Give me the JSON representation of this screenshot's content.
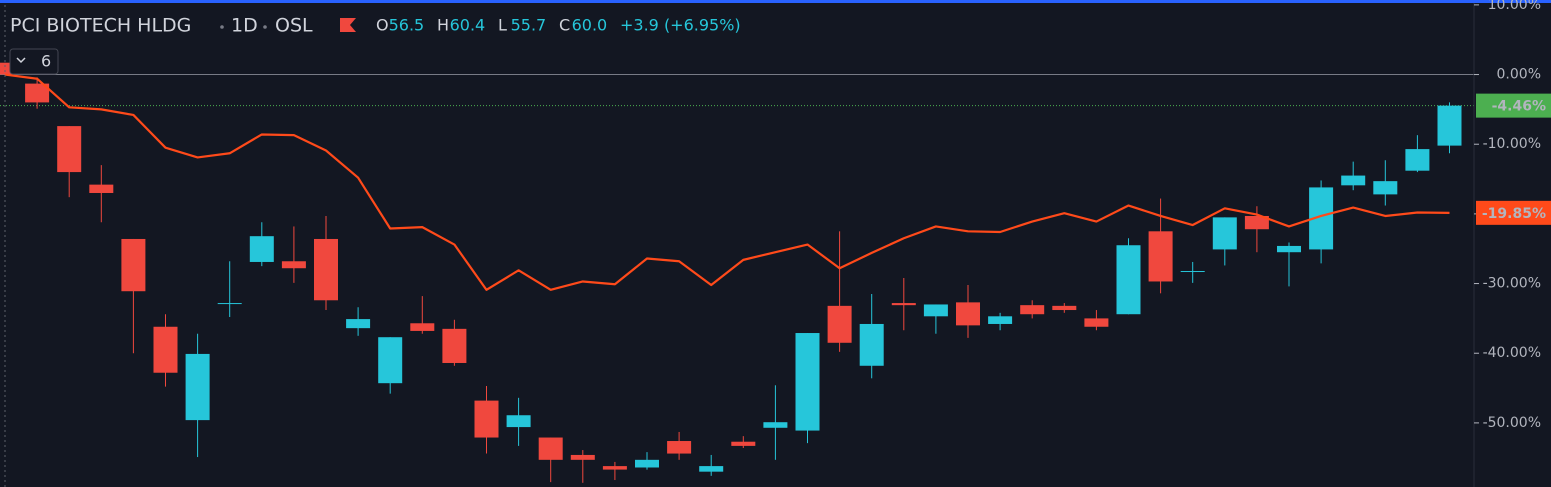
{
  "chart_data": {
    "type": "candlestick",
    "title": "PCI BIOTECH HLDG",
    "interval": "1D",
    "exchange": "OSL",
    "legend": [
      {
        "key": "O",
        "value": "56.5"
      },
      {
        "key": "H",
        "value": "60.4"
      },
      {
        "key": "L",
        "value": "55.7"
      },
      {
        "key": "C",
        "value": "60.0"
      }
    ],
    "change": "+3.9 (+6.95%)",
    "indicator_count": "6",
    "up_color": "#26c6da",
    "down_color": "#f0483e",
    "candles": {
      "open": [
        1.7,
        -1.3,
        -7.4,
        -15.8,
        -23.6,
        -36.2,
        -49.6,
        -32.8,
        -26.9,
        -26.8,
        -23.6,
        -36.4,
        -44.3,
        -35.7,
        -36.5,
        -46.8,
        -50.6,
        -52.1,
        -54.6,
        -56.2,
        -56.4,
        -52.6,
        -57.0,
        -52.7,
        -50.7,
        -51.1,
        -33.2,
        -41.8,
        -32.8,
        -34.7,
        -32.7,
        -35.8,
        -33.1,
        -33.2,
        -35.0,
        -34.4,
        -22.5,
        -28.2,
        -25.1,
        -20.3,
        -25.5,
        -25.1,
        -15.9,
        -17.2,
        -13.8,
        -10.2
      ],
      "high": [
        1.7,
        -0.4,
        -7.4,
        -13.0,
        -23.6,
        -34.4,
        -37.2,
        -26.8,
        -21.2,
        -21.8,
        -20.3,
        -33.4,
        -37.7,
        -31.8,
        -35.2,
        -44.7,
        -46.4,
        -52.1,
        -53.9,
        -55.6,
        -54.2,
        -51.3,
        -54.6,
        -51.9,
        -44.6,
        -37.1,
        -22.5,
        -31.5,
        -29.2,
        -33.0,
        -30.2,
        -34.2,
        -32.4,
        -32.8,
        -33.8,
        -23.5,
        -17.8,
        -26.9,
        -20.5,
        -18.9,
        -24.1,
        -15.2,
        -12.5,
        -12.3,
        -8.7,
        -4.0
      ],
      "low": [
        0,
        -4.9,
        -17.6,
        -21.2,
        -40.0,
        -44.8,
        -54.9,
        -34.8,
        -27.5,
        -29.9,
        -33.8,
        -37.5,
        -45.8,
        -37.2,
        -41.8,
        -54.4,
        -53.3,
        -58.5,
        -58.6,
        -58.2,
        -56.7,
        -55.3,
        -57.6,
        -53.6,
        -55.3,
        -52.9,
        -39.8,
        -43.6,
        -36.7,
        -37.2,
        -37.8,
        -36.7,
        -35.0,
        -34.2,
        -36.7,
        -34.4,
        -31.4,
        -29.9,
        -27.4,
        -25.5,
        -30.4,
        -27.1,
        -16.6,
        -18.8,
        -14.0,
        -11.3
      ],
      "close": [
        0,
        -4.0,
        -14.0,
        -17.0,
        -31.1,
        -42.8,
        -40.1,
        -32.8,
        -23.2,
        -27.8,
        -32.4,
        -35.1,
        -37.7,
        -36.8,
        -41.4,
        -52.1,
        -48.9,
        -55.3,
        -55.3,
        -56.7,
        -55.3,
        -54.4,
        -56.2,
        -53.3,
        -49.9,
        -37.1,
        -38.5,
        -35.8,
        -33.1,
        -33.0,
        -36.0,
        -34.7,
        -34.4,
        -33.8,
        -36.2,
        -24.5,
        -29.7,
        -28.2,
        -20.5,
        -22.2,
        -24.6,
        -16.2,
        -14.5,
        -15.3,
        -10.7,
        -4.46
      ]
    },
    "price_badge": {
      "value": -4.46,
      "label": "-4.46%",
      "color": "#4caf50"
    },
    "compare": {
      "color": "#ff4a1a",
      "values": [
        0,
        -0.6,
        -4.7,
        -5.0,
        -5.8,
        -10.5,
        -11.9,
        -11.3,
        -8.6,
        -8.7,
        -10.9,
        -14.8,
        -22.1,
        -21.9,
        -24.4,
        -30.9,
        -28.1,
        -30.9,
        -29.7,
        -30.1,
        -26.4,
        -26.8,
        -30.2,
        -26.6,
        -25.5,
        -24.4,
        -27.8,
        -25.6,
        -23.5,
        -21.8,
        -22.5,
        -22.6,
        -21.1,
        -19.9,
        -21.1,
        -18.8,
        -20.3,
        -21.6,
        -19.2,
        -20.1,
        -21.8,
        -20.3,
        -19.1,
        -20.3,
        -19.8,
        -19.85
      ],
      "badge": {
        "value": -19.85,
        "label": "-19.85%"
      }
    },
    "ylim": [
      -59.2,
      10.7
    ],
    "yticks": [
      {
        "value": 10,
        "label": "10.00%"
      },
      {
        "value": 0,
        "label": "0.00%"
      },
      {
        "value": -10,
        "label": "-10.00%"
      },
      {
        "value": -20,
        "label": "-20.00%"
      },
      {
        "value": -30,
        "label": "-30.00%"
      },
      {
        "value": -40,
        "label": "-40.00%"
      },
      {
        "value": -50,
        "label": "-50.00%"
      }
    ]
  }
}
